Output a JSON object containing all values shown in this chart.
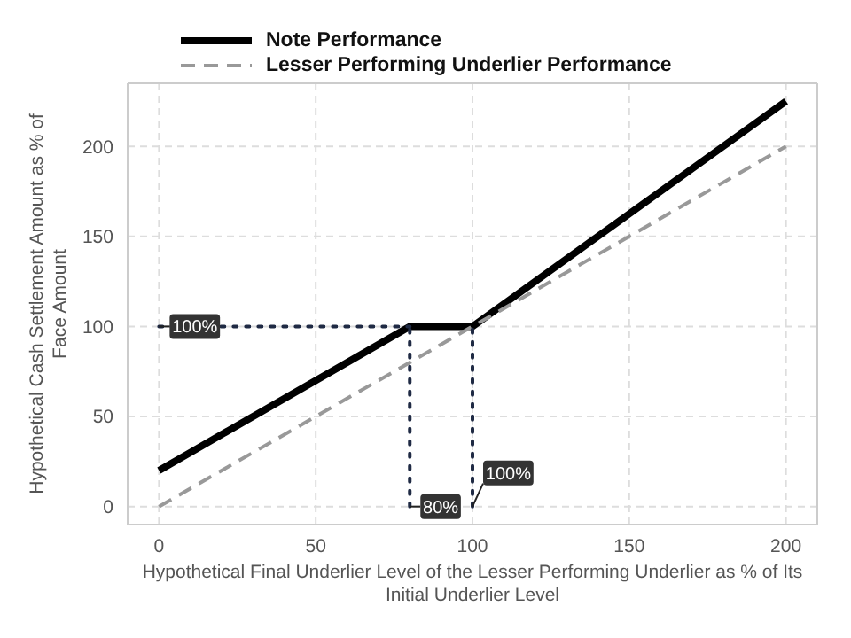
{
  "chart_data": {
    "type": "line",
    "xlabel": "Hypothetical Final Underlier Level of the Lesser Performing Underlier as % of Its Initial Underlier Level",
    "ylabel": "Hypothetical Cash Settlement Amount as % of Face Amount",
    "xlim": [
      -10,
      210
    ],
    "ylim": [
      -10,
      235
    ],
    "xticks": [
      0,
      50,
      100,
      150,
      200
    ],
    "yticks": [
      0,
      50,
      100,
      150,
      200
    ],
    "grid": true,
    "legend": "top",
    "series": [
      {
        "name": "Note Performance",
        "color": "#000000",
        "x": [
          0,
          80,
          100,
          200
        ],
        "values": [
          20,
          100,
          100,
          225
        ],
        "line_style": "solid"
      },
      {
        "name": "Lesser Performing Underlier Performance",
        "color": "#999999",
        "x": [
          0,
          200
        ],
        "values": [
          0,
          200
        ],
        "line_style": "dashed"
      },
      {
        "color": "#1f2a44",
        "x": [
          0,
          80
        ],
        "values": [
          100,
          100
        ],
        "line_style": "dotted"
      },
      {
        "color": "#1f2a44",
        "x": [
          80,
          80
        ],
        "values": [
          0,
          100
        ],
        "line_style": "dotted"
      },
      {
        "color": "#1f2a44",
        "x": [
          100,
          100
        ],
        "values": [
          0,
          100
        ],
        "line_style": "dotted"
      }
    ],
    "annotations": [
      {
        "text": "100%",
        "x": 0,
        "y": 100
      },
      {
        "text": "80%",
        "x": 80,
        "y": 0
      },
      {
        "text": "100%",
        "x": 100,
        "y": 0
      }
    ]
  }
}
